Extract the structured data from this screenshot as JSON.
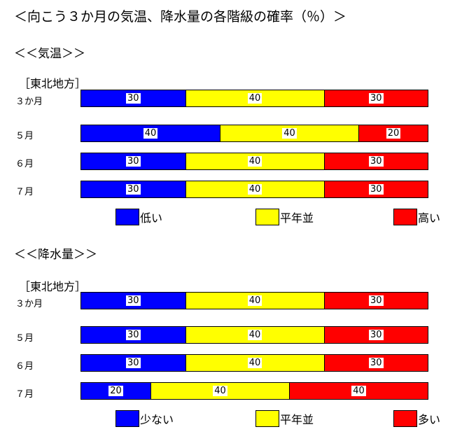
{
  "title": "＜向こう３か月の気温、降水量の各階級の確率（％）＞",
  "colors": {
    "low": "#0000ff",
    "normal": "#ffff00",
    "high": "#ff0000"
  },
  "chart_data": [
    {
      "type": "bar",
      "stacked": "horizontal-100%",
      "title": "＜＜気温＞＞",
      "region": "［東北地方］",
      "categories": [
        "３か月",
        "５月",
        "６月",
        "７月"
      ],
      "series": [
        {
          "name": "低い",
          "values": [
            30,
            40,
            30,
            30
          ]
        },
        {
          "name": "平年並",
          "values": [
            40,
            40,
            40,
            40
          ]
        },
        {
          "name": "高い",
          "values": [
            30,
            20,
            30,
            30
          ]
        }
      ]
    },
    {
      "type": "bar",
      "stacked": "horizontal-100%",
      "title": "＜＜降水量＞＞",
      "region": "［東北地方］",
      "categories": [
        "３か月",
        "５月",
        "６月",
        "７月"
      ],
      "series": [
        {
          "name": "少ない",
          "values": [
            30,
            30,
            30,
            20
          ]
        },
        {
          "name": "平年並",
          "values": [
            40,
            40,
            40,
            40
          ]
        },
        {
          "name": "多い",
          "values": [
            30,
            30,
            30,
            40
          ]
        }
      ]
    }
  ]
}
